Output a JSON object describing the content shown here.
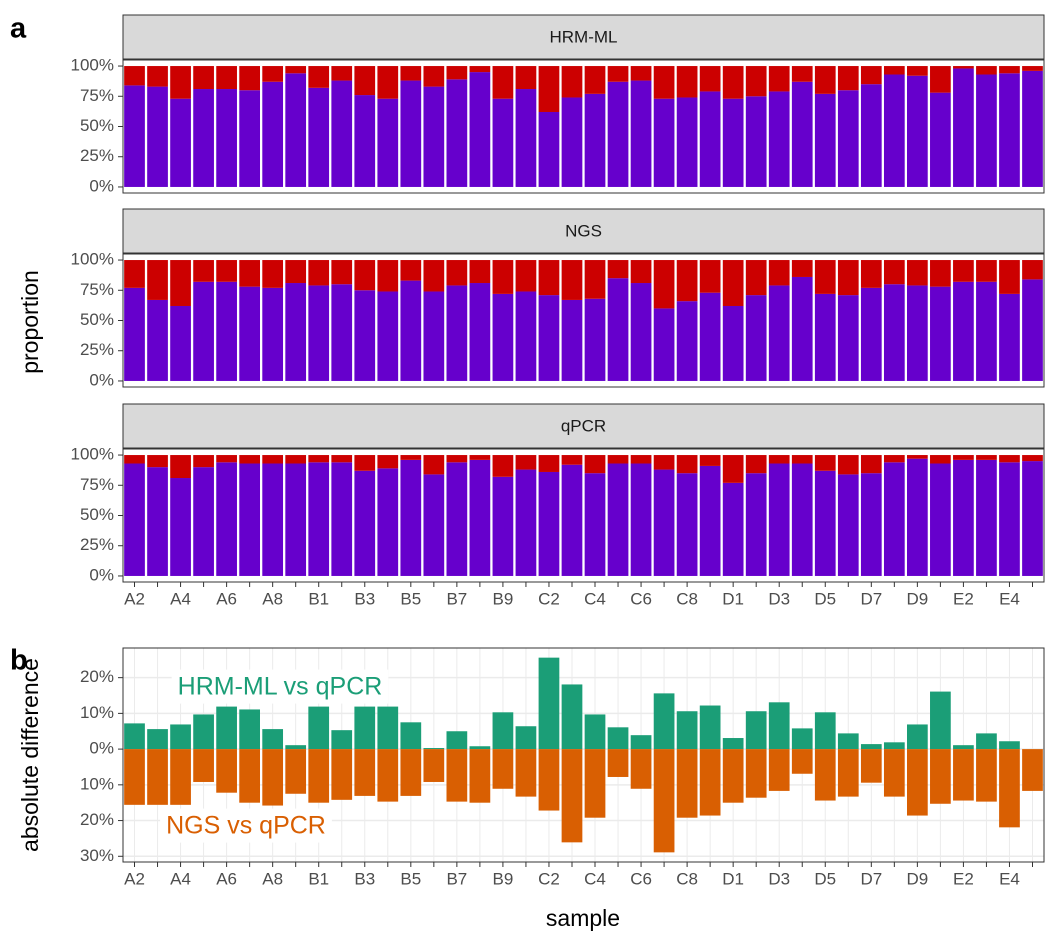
{
  "chart_data": [
    {
      "type": "bar",
      "stacked": true,
      "panel_label": "a",
      "y_label": "proportion",
      "grid": false,
      "categories": [
        "A2",
        null,
        "A4",
        null,
        "A6",
        null,
        "A8",
        null,
        "B1",
        null,
        "B3",
        null,
        "B5",
        null,
        "B7",
        null,
        "B9",
        null,
        "C2",
        null,
        "C4",
        null,
        "C6",
        null,
        "C8",
        null,
        "D1",
        null,
        "D3",
        null,
        "D5",
        null,
        "D7",
        null,
        "D9",
        null,
        "E2",
        null,
        "E4",
        null
      ],
      "ylim": [
        -5,
        105
      ],
      "yticks": [
        {
          "value": 0,
          "label": "0%"
        },
        {
          "value": 25,
          "label": "25%"
        },
        {
          "value": 50,
          "label": "50%"
        },
        {
          "value": 75,
          "label": "75%"
        },
        {
          "value": 100,
          "label": "100%"
        }
      ],
      "facets": [
        {
          "title": "HRM-ML",
          "series": [
            {
              "color": "#6600cc",
              "values": [
                84,
                83,
                73,
                81,
                81,
                80,
                87,
                94,
                82,
                88,
                76,
                73,
                88,
                83,
                89,
                95,
                73,
                81,
                62,
                74,
                77,
                87,
                88,
                73,
                74,
                79,
                73,
                75,
                79,
                87,
                77,
                80,
                85,
                93,
                92,
                78,
                98,
                93,
                94,
                96
              ]
            },
            {
              "color": "#cc0000",
              "values": [
                16,
                17,
                27,
                19,
                19,
                20,
                13,
                6,
                18,
                12,
                24,
                27,
                12,
                17,
                11,
                5,
                27,
                19,
                38,
                26,
                23,
                13,
                12,
                27,
                26,
                21,
                27,
                25,
                21,
                13,
                23,
                20,
                15,
                7,
                8,
                22,
                2,
                7,
                6,
                4
              ]
            }
          ]
        },
        {
          "title": "NGS",
          "series": [
            {
              "color": "#6600cc",
              "values": [
                77,
                67,
                62,
                82,
                82,
                78,
                77,
                81,
                79,
                80,
                75,
                74,
                83,
                74,
                79,
                81,
                72,
                74,
                71,
                67,
                68,
                85,
                81,
                60,
                66,
                73,
                62,
                71,
                79,
                86,
                72,
                71,
                77,
                80,
                79,
                78,
                82,
                82,
                72,
                84
              ]
            },
            {
              "color": "#cc0000",
              "values": [
                23,
                33,
                38,
                18,
                18,
                22,
                23,
                19,
                21,
                20,
                25,
                26,
                17,
                26,
                21,
                19,
                28,
                26,
                29,
                33,
                32,
                15,
                19,
                40,
                34,
                27,
                38,
                29,
                21,
                14,
                28,
                29,
                23,
                20,
                21,
                22,
                18,
                18,
                28,
                16
              ]
            }
          ]
        },
        {
          "title": "qPCR",
          "series": [
            {
              "color": "#6600cc",
              "values": [
                93,
                90,
                81,
                90,
                94,
                93,
                93,
                93,
                94,
                94,
                87,
                89,
                96,
                84,
                94,
                96,
                82,
                88,
                86,
                92,
                85,
                93,
                93,
                88,
                85,
                91,
                77,
                85,
                93,
                93,
                87,
                84,
                85,
                94,
                97,
                93,
                96,
                96,
                94,
                95
              ]
            },
            {
              "color": "#cc0000",
              "values": [
                7,
                10,
                19,
                10,
                6,
                7,
                7,
                7,
                6,
                6,
                13,
                11,
                4,
                16,
                6,
                4,
                18,
                12,
                14,
                8,
                15,
                7,
                7,
                12,
                15,
                9,
                23,
                15,
                7,
                7,
                13,
                16,
                15,
                6,
                3,
                7,
                4,
                4,
                6,
                5
              ]
            }
          ]
        }
      ]
    },
    {
      "type": "bar",
      "stacked": false,
      "panel_label": "b",
      "y_label": "absolute difference",
      "x_label": "sample",
      "grid": true,
      "categories": [
        "A2",
        null,
        "A4",
        null,
        "A6",
        null,
        "A8",
        null,
        "B1",
        null,
        "B3",
        null,
        "B5",
        null,
        "B7",
        null,
        "B9",
        null,
        "C2",
        null,
        "C4",
        null,
        "C6",
        null,
        "C8",
        null,
        "D1",
        null,
        "D3",
        null,
        "D5",
        null,
        "D7",
        null,
        "D9",
        null,
        "E2",
        null,
        "E4",
        null
      ],
      "ylim": [
        -31.6,
        28.3
      ],
      "yticks": [
        {
          "value": -30,
          "label": "30%"
        },
        {
          "value": -20,
          "label": "20%"
        },
        {
          "value": -10,
          "label": "10%"
        },
        {
          "value": 0,
          "label": "0%"
        },
        {
          "value": 10,
          "label": "10%"
        },
        {
          "value": 20,
          "label": "20%"
        }
      ],
      "series": [
        {
          "name": "HRM-ML vs qPCR",
          "color": "#1b9e77",
          "values": [
            7.2,
            5.6,
            6.9,
            9.7,
            11.9,
            11.1,
            5.6,
            1.1,
            11.9,
            5.3,
            11.9,
            11.9,
            7.5,
            0.3,
            5,
            0.8,
            10.3,
            6.4,
            25.6,
            18.1,
            9.7,
            6.1,
            3.9,
            15.6,
            10.6,
            12.2,
            3.1,
            10.6,
            13.1,
            5.8,
            10.3,
            4.4,
            1.4,
            1.9,
            6.9,
            16.1,
            1.1,
            4.4,
            2.2,
            0
          ]
        },
        {
          "name": "NGS vs qPCR",
          "color": "#d95f02",
          "values": [
            -15.6,
            -15.6,
            -15.6,
            -9.2,
            -12.2,
            -15,
            -15.8,
            -12.5,
            -15,
            -14.2,
            -13.1,
            -14.7,
            -13.1,
            -9.2,
            -14.7,
            -15,
            -11.1,
            -13.3,
            -17.2,
            -26.1,
            -19.2,
            -7.8,
            -11.1,
            -28.9,
            -19.2,
            -18.6,
            -15,
            -13.6,
            -11.7,
            -6.9,
            -14.4,
            -13.3,
            -9.4,
            -13.3,
            -18.6,
            -15.3,
            -14.4,
            -14.7,
            -21.9,
            -11.7
          ]
        }
      ]
    }
  ]
}
